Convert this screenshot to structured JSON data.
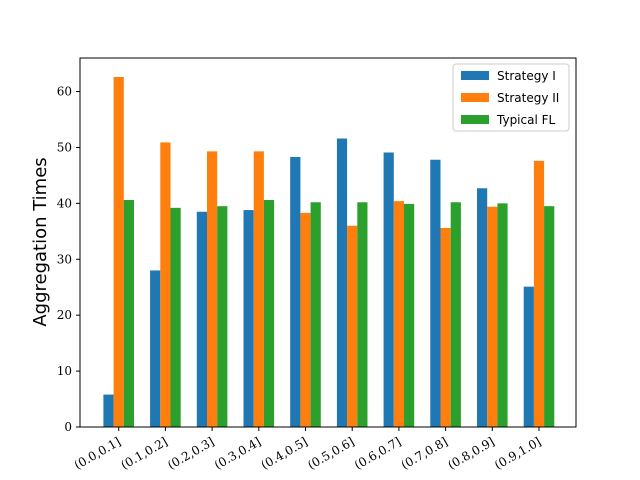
{
  "chart_data": {
    "type": "bar",
    "title": "",
    "xlabel": "",
    "ylabel": "Aggregation Times",
    "ylim": [
      0,
      66
    ],
    "yticks": [
      0,
      10,
      20,
      30,
      40,
      50,
      60
    ],
    "grid": false,
    "legend_position": "top-right",
    "categories": [
      "(0.0,0.1]",
      "(0.1,0.2]",
      "(0.2,0.3]",
      "(0.3,0.4]",
      "(0.4,0.5]",
      "(0.5,0.6]",
      "(0.6,0.7]",
      "(0.7,0.8]",
      "(0.8,0.9]",
      "(0.9,1.0]"
    ],
    "series": [
      {
        "name": "Strategy I",
        "color": "#1f77b4",
        "values": [
          5.8,
          28.0,
          38.5,
          38.8,
          48.3,
          51.6,
          49.1,
          47.8,
          42.7,
          25.1
        ]
      },
      {
        "name": "Strategy II",
        "color": "#ff7f0e",
        "values": [
          62.6,
          50.9,
          49.3,
          49.3,
          38.3,
          36.0,
          40.4,
          35.6,
          39.4,
          47.6
        ]
      },
      {
        "name": "Typical FL",
        "color": "#2ca02c",
        "values": [
          40.6,
          39.2,
          39.5,
          40.6,
          40.2,
          40.2,
          39.9,
          40.2,
          40.0,
          39.5
        ]
      }
    ]
  }
}
